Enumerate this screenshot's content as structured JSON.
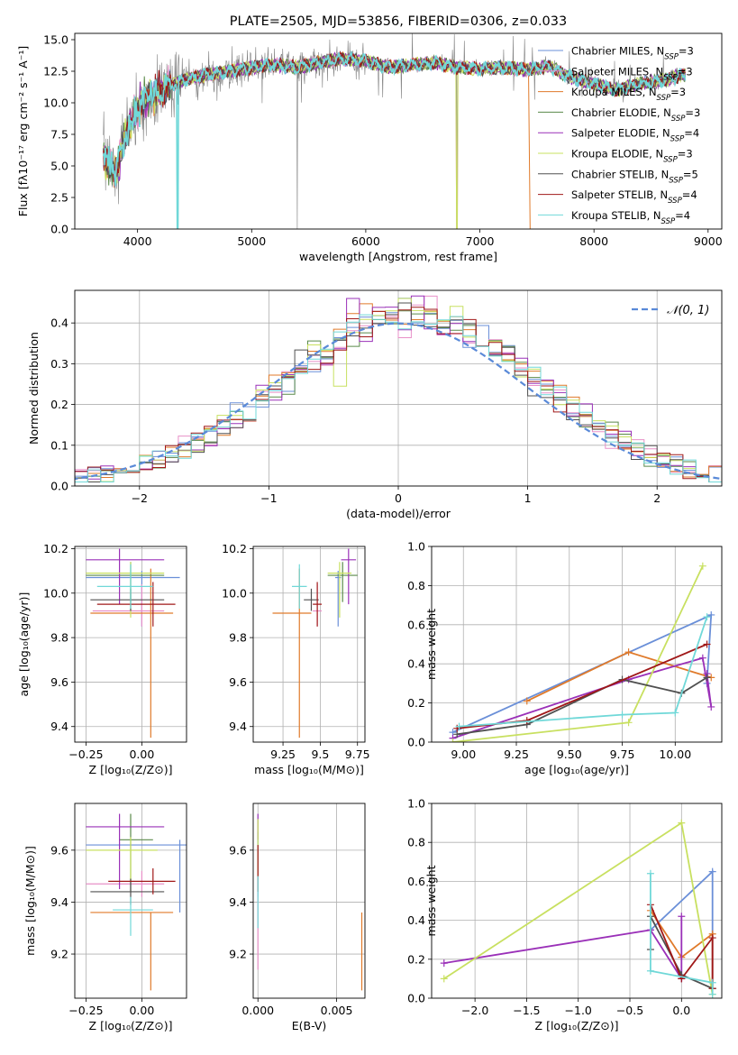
{
  "series_styles": [
    {
      "name": "Chabrier MILES",
      "color": "#6a8fd8"
    },
    {
      "name": "Salpeter MILES",
      "color": "#e890c8"
    },
    {
      "name": "Kroupa MILES",
      "color": "#e07a2a"
    },
    {
      "name": "Chabrier ELODIE",
      "color": "#5a8a4a"
    },
    {
      "name": "Salpeter ELODIE",
      "color": "#9a30b8"
    },
    {
      "name": "Kroupa ELODIE",
      "color": "#c8e060"
    },
    {
      "name": "Chabrier STELIB",
      "color": "#505050"
    },
    {
      "name": "Salpeter STELIB",
      "color": "#a01818"
    },
    {
      "name": "Kroupa STELIB",
      "color": "#70d8d8"
    }
  ],
  "chart_data": [
    {
      "id": "spectrum",
      "type": "line",
      "title": "PLATE=2505, MJD=53856, FIBERID=0306, z=0.033",
      "xlabel": "wavelength [Angstrom, rest frame]",
      "ylabel": "Flux [fλ10⁻¹⁷ erg cm⁻² s⁻¹ A⁻¹]",
      "xlim": [
        3450,
        9120
      ],
      "ylim": [
        0,
        15.5
      ],
      "xticks": [
        4000,
        5000,
        6000,
        7000,
        8000,
        9000
      ],
      "yticks": [
        0.0,
        2.5,
        5.0,
        7.5,
        10.0,
        12.5,
        15.0
      ],
      "grid": false,
      "legend": "upper-right",
      "legend_entries": [
        {
          "label": "Chabrier MILES, N",
          "sub": "SSP",
          "tail": "=3"
        },
        {
          "label": "Salpeter MILES, N",
          "sub": "SSP",
          "tail": "=3"
        },
        {
          "label": "Kroupa MILES, N",
          "sub": "SSP",
          "tail": "=3"
        },
        {
          "label": "Chabrier ELODIE, N",
          "sub": "SSP",
          "tail": "=3"
        },
        {
          "label": "Salpeter ELODIE, N",
          "sub": "SSP",
          "tail": "=4"
        },
        {
          "label": "Kroupa ELODIE, N",
          "sub": "SSP",
          "tail": "=3"
        },
        {
          "label": "Chabrier STELIB, N",
          "sub": "SSP",
          "tail": "=5"
        },
        {
          "label": "Salpeter STELIB, N",
          "sub": "SSP",
          "tail": "=4"
        },
        {
          "label": "Kroupa STELIB, N",
          "sub": "SSP",
          "tail": "=4"
        }
      ],
      "model_knots": {
        "x": [
          3700,
          3750,
          3800,
          3900,
          4000,
          4100,
          4200,
          4400,
          4600,
          4800,
          5000,
          5200,
          5400,
          5600,
          5800,
          6000,
          6200,
          6400,
          6600,
          6800,
          7000,
          7200,
          7400,
          7600,
          7800,
          8000,
          8200,
          8400,
          8600,
          8800
        ],
        "y": [
          6.0,
          5.0,
          4.5,
          7.5,
          9.5,
          10.5,
          11.0,
          11.8,
          12.2,
          12.5,
          12.8,
          13.0,
          12.8,
          13.2,
          13.5,
          13.3,
          12.8,
          13.0,
          13.2,
          12.8,
          12.7,
          12.8,
          12.6,
          12.9,
          12.0,
          11.5,
          11.0,
          11.5,
          11.8,
          12.2
        ]
      },
      "model_gaps": [
        {
          "series": "Kroupa MILES",
          "x": [
            7450,
            9120
          ],
          "drop_to": 0
        }
      ],
      "model_drops": [
        4350,
        6800
      ]
    },
    {
      "id": "residuals",
      "type": "histogram",
      "xlabel": "(data-model)/error",
      "ylabel": "Normed distribution",
      "xlim": [
        -2.5,
        2.5
      ],
      "ylim": [
        0,
        0.48
      ],
      "xticks": [
        -2,
        -1,
        0,
        1,
        2
      ],
      "yticks": [
        0.0,
        0.1,
        0.2,
        0.3,
        0.4
      ],
      "grid": true,
      "legend": "upper-right",
      "reference_label": "𝒩(0, 1)",
      "reference": {
        "mean": 0,
        "sigma": 1,
        "style": "dashed",
        "color": "#5a8ad8"
      },
      "bin_width": 0.1
    },
    {
      "id": "age-vs-Z",
      "type": "errorbar",
      "xlabel": "Z [log₁₀(Z/Z⊙)]",
      "ylabel": "age  [log₁₀(age/yr)]",
      "xlim": [
        -0.3,
        0.2
      ],
      "ylim": [
        9.33,
        10.21
      ],
      "xticks": [
        -0.25,
        0.0
      ],
      "xtick_labels": [
        "−0.25",
        "0.00"
      ],
      "yticks": [
        9.4,
        9.6,
        9.8,
        10.0,
        10.2
      ],
      "grid": true,
      "points": [
        {
          "series": "Chabrier MILES",
          "x": 0.0,
          "xerr": [
            0.25,
            0.17
          ],
          "y": 10.07,
          "yerr": [
            0.22,
            0.03
          ]
        },
        {
          "series": "Salpeter MILES",
          "x": 0.0,
          "xerr": [
            0.22,
            0.1
          ],
          "y": 9.92,
          "yerr": [
            0.07,
            0.12
          ]
        },
        {
          "series": "Kroupa MILES",
          "x": 0.04,
          "xerr": [
            0.27,
            0.1
          ],
          "y": 9.91,
          "yerr": [
            0.56,
            0.2
          ]
        },
        {
          "series": "Chabrier ELODIE",
          "x": -0.05,
          "xerr": [
            0.2,
            0.15
          ],
          "y": 10.08,
          "yerr": [
            0.12,
            0.06
          ]
        },
        {
          "series": "Salpeter ELODIE",
          "x": -0.1,
          "xerr": [
            0.15,
            0.2
          ],
          "y": 10.15,
          "yerr": [
            0.2,
            0.05
          ]
        },
        {
          "series": "Kroupa ELODIE",
          "x": -0.05,
          "xerr": [
            0.2,
            0.15
          ],
          "y": 10.09,
          "yerr": [
            0.2,
            0.05
          ]
        },
        {
          "series": "Chabrier STELIB",
          "x": -0.05,
          "xerr": [
            0.18,
            0.15
          ],
          "y": 9.97,
          "yerr": [
            0.05,
            0.05
          ]
        },
        {
          "series": "Salpeter STELIB",
          "x": 0.05,
          "xerr": [
            0.25,
            0.1
          ],
          "y": 9.95,
          "yerr": [
            0.1,
            0.1
          ]
        },
        {
          "series": "Kroupa STELIB",
          "x": -0.05,
          "xerr": [
            0.15,
            0.1
          ],
          "y": 10.03,
          "yerr": [
            0.1,
            0.1
          ]
        }
      ]
    },
    {
      "id": "age-vs-mass",
      "type": "errorbar",
      "xlabel": "mass [log₁₀(M/M⊙)]",
      "ylabel": "",
      "xlim": [
        9.05,
        9.8
      ],
      "ylim": [
        9.33,
        10.21
      ],
      "xticks": [
        9.25,
        9.5,
        9.75
      ],
      "yticks": [
        9.4,
        9.6,
        9.8,
        10.0,
        10.2
      ],
      "grid": true,
      "points": [
        {
          "series": "Chabrier MILES",
          "x": 9.62,
          "xerr": [
            0.02,
            0.02
          ],
          "y": 10.07,
          "yerr": [
            0.22,
            0.03
          ]
        },
        {
          "series": "Salpeter MILES",
          "x": 9.48,
          "xerr": [
            0.03,
            0.03
          ],
          "y": 9.92,
          "yerr": [
            0.07,
            0.12
          ]
        },
        {
          "series": "Kroupa MILES",
          "x": 9.36,
          "xerr": [
            0.18,
            0.08
          ],
          "y": 9.91,
          "yerr": [
            0.56,
            0.2
          ]
        },
        {
          "series": "Chabrier ELODIE",
          "x": 9.65,
          "xerr": [
            0.1,
            0.1
          ],
          "y": 10.08,
          "yerr": [
            0.12,
            0.06
          ]
        },
        {
          "series": "Salpeter ELODIE",
          "x": 9.69,
          "xerr": [
            0.05,
            0.05
          ],
          "y": 10.15,
          "yerr": [
            0.2,
            0.05
          ]
        },
        {
          "series": "Kroupa ELODIE",
          "x": 9.63,
          "xerr": [
            0.08,
            0.08
          ],
          "y": 10.09,
          "yerr": [
            0.2,
            0.05
          ]
        },
        {
          "series": "Chabrier STELIB",
          "x": 9.44,
          "xerr": [
            0.05,
            0.05
          ],
          "y": 9.97,
          "yerr": [
            0.05,
            0.05
          ]
        },
        {
          "series": "Salpeter STELIB",
          "x": 9.48,
          "xerr": [
            0.03,
            0.03
          ],
          "y": 9.95,
          "yerr": [
            0.1,
            0.1
          ]
        },
        {
          "series": "Kroupa STELIB",
          "x": 9.36,
          "xerr": [
            0.05,
            0.05
          ],
          "y": 10.03,
          "yerr": [
            0.1,
            0.1
          ]
        }
      ]
    },
    {
      "id": "weight-vs-age",
      "type": "line",
      "xlabel": "age  [log₁₀(age/yr)]",
      "ylabel": "mass weight",
      "xlim": [
        8.85,
        10.22
      ],
      "ylim": [
        0,
        1.0
      ],
      "xticks": [
        9.0,
        9.25,
        9.5,
        9.75,
        10.0
      ],
      "yticks": [
        0.0,
        0.2,
        0.4,
        0.6,
        0.8,
        1.0
      ],
      "grid": true,
      "series": [
        {
          "name": "Chabrier MILES",
          "x": [
            8.95,
            10.17,
            10.15
          ],
          "y": [
            0.05,
            0.65,
            0.3
          ]
        },
        {
          "name": "Kroupa MILES",
          "x": [
            9.3,
            9.78,
            10.17
          ],
          "y": [
            0.21,
            0.46,
            0.33
          ]
        },
        {
          "name": "Salpeter ELODIE",
          "x": [
            8.95,
            9.78,
            10.13,
            10.17,
            10.15
          ],
          "y": [
            0.02,
            0.32,
            0.43,
            0.18,
            0.35
          ]
        },
        {
          "name": "Kroupa ELODIE",
          "x": [
            8.95,
            9.78,
            10.13
          ],
          "y": [
            0.0,
            0.1,
            0.9
          ]
        },
        {
          "name": "Chabrier STELIB",
          "x": [
            8.97,
            9.3,
            9.75,
            10.03,
            10.15
          ],
          "y": [
            0.04,
            0.09,
            0.32,
            0.25,
            0.33
          ]
        },
        {
          "name": "Salpeter STELIB",
          "x": [
            8.97,
            9.3,
            10.15
          ],
          "y": [
            0.07,
            0.11,
            0.5
          ]
        },
        {
          "name": "Kroupa STELIB",
          "x": [
            8.98,
            9.75,
            10.0,
            10.15
          ],
          "y": [
            0.08,
            0.14,
            0.15,
            0.64
          ]
        }
      ]
    },
    {
      "id": "mass-vs-Z",
      "type": "errorbar",
      "xlabel": "Z [log₁₀(Z/Z⊙)]",
      "ylabel": "mass [log₁₀(M/M⊙)]",
      "xlim": [
        -0.3,
        0.2
      ],
      "ylim": [
        9.03,
        9.78
      ],
      "xticks": [
        -0.25,
        0.0
      ],
      "xtick_labels": [
        "−0.25",
        "0.00"
      ],
      "yticks": [
        9.2,
        9.4,
        9.6
      ],
      "grid": true,
      "points": [
        {
          "series": "Chabrier MILES",
          "x": 0.17,
          "xerr": [
            0.42,
            0.05
          ],
          "y": 9.62,
          "yerr": [
            0.26,
            0.02
          ]
        },
        {
          "series": "Salpeter MILES",
          "x": 0.0,
          "xerr": [
            0.25,
            0.1
          ],
          "y": 9.47,
          "yerr": [
            0.05,
            0.05
          ]
        },
        {
          "series": "Kroupa MILES",
          "x": 0.04,
          "xerr": [
            0.27,
            0.1
          ],
          "y": 9.36,
          "yerr": [
            0.3,
            0.0
          ]
        },
        {
          "series": "Chabrier ELODIE",
          "x": -0.05,
          "xerr": [
            0.05,
            0.1
          ],
          "y": 9.64,
          "yerr": [
            0.2,
            0.1
          ]
        },
        {
          "series": "Salpeter ELODIE",
          "x": -0.1,
          "xerr": [
            0.15,
            0.2
          ],
          "y": 9.69,
          "yerr": [
            0.24,
            0.05
          ]
        },
        {
          "series": "Kroupa ELODIE",
          "x": -0.05,
          "xerr": [
            0.2,
            0.12
          ],
          "y": 9.6,
          "yerr": [
            0.12,
            0.05
          ]
        },
        {
          "series": "Chabrier STELIB",
          "x": -0.05,
          "xerr": [
            0.18,
            0.15
          ],
          "y": 9.44,
          "yerr": [
            0.05,
            0.05
          ]
        },
        {
          "series": "Salpeter STELIB",
          "x": 0.05,
          "xerr": [
            0.2,
            0.1
          ],
          "y": 9.48,
          "yerr": [
            0.05,
            0.05
          ]
        },
        {
          "series": "Kroupa STELIB",
          "x": -0.05,
          "xerr": [
            0.08,
            0.1
          ],
          "y": 9.37,
          "yerr": [
            0.1,
            0.05
          ]
        }
      ]
    },
    {
      "id": "mass-vs-EBV",
      "type": "errorbar",
      "xlabel": "E(B-V)",
      "ylabel": "",
      "xlim": [
        -0.0003,
        0.0068
      ],
      "ylim": [
        9.03,
        9.78
      ],
      "xticks": [
        0.0,
        0.005
      ],
      "xtick_labels": [
        "0.000",
        "0.005"
      ],
      "yticks": [
        9.2,
        9.4,
        9.6
      ],
      "grid": true,
      "points": [
        {
          "series": "Chabrier MILES",
          "x": 0.0,
          "xerr": [
            0,
            0
          ],
          "y": 9.62,
          "yerr": [
            0.2,
            0.05
          ]
        },
        {
          "series": "Salpeter MILES",
          "x": 0.0,
          "xerr": [
            0,
            0
          ],
          "y": 9.47,
          "yerr": [
            0.33,
            0.05
          ]
        },
        {
          "series": "Kroupa MILES",
          "x": 0.0066,
          "xerr": [
            0,
            0
          ],
          "y": 9.21,
          "yerr": [
            0.15,
            0.15
          ]
        },
        {
          "series": "Salpeter ELODIE",
          "x": 0.0,
          "xerr": [
            0,
            0
          ],
          "y": 9.69,
          "yerr": [
            0.05,
            0.05
          ]
        },
        {
          "series": "Kroupa ELODIE",
          "x": 0.0,
          "xerr": [
            0,
            0
          ],
          "y": 9.6,
          "yerr": [
            0.1,
            0.12
          ]
        },
        {
          "series": "Salpeter STELIB",
          "x": 0.0,
          "xerr": [
            0,
            0
          ],
          "y": 9.52,
          "yerr": [
            0.08,
            0.1
          ]
        },
        {
          "series": "Kroupa STELIB",
          "x": 0.0,
          "xerr": [
            0,
            0
          ],
          "y": 9.4,
          "yerr": [
            0.1,
            0.1
          ]
        }
      ]
    },
    {
      "id": "weight-vs-Z",
      "type": "line",
      "xlabel": "Z [log₁₀(Z/Z⊙)]",
      "ylabel": "mass weight",
      "xlim": [
        -2.42,
        0.39
      ],
      "ylim": [
        0,
        1.0
      ],
      "xticks": [
        -2.0,
        -1.5,
        -1.0,
        -0.5,
        0.0
      ],
      "xtick_labels": [
        "−2.0",
        "−1.5",
        "−1.0",
        "−0.5",
        "0.0"
      ],
      "yticks": [
        0.0,
        0.2,
        0.4,
        0.6,
        0.8,
        1.0
      ],
      "grid": true,
      "series": [
        {
          "name": "Chabrier MILES",
          "x": [
            -0.3,
            0.3,
            0.3
          ],
          "y": [
            0.35,
            0.65,
            0.05
          ]
        },
        {
          "name": "Kroupa MILES",
          "x": [
            -0.3,
            0.0,
            0.3,
            0.3
          ],
          "y": [
            0.45,
            0.21,
            0.33,
            0.05
          ]
        },
        {
          "name": "Salpeter ELODIE",
          "x": [
            -2.3,
            -0.3,
            0.0,
            0.0
          ],
          "y": [
            0.18,
            0.35,
            0.1,
            0.42
          ]
        },
        {
          "name": "Kroupa ELODIE",
          "x": [
            -2.3,
            0.0,
            0.3
          ],
          "y": [
            0.1,
            0.9,
            0.02
          ]
        },
        {
          "name": "Chabrier STELIB",
          "x": [
            -0.3,
            -0.3,
            0.0,
            0.3
          ],
          "y": [
            0.25,
            0.42,
            0.12,
            0.05
          ]
        },
        {
          "name": "Salpeter STELIB",
          "x": [
            -0.3,
            0.0,
            0.3,
            0.3
          ],
          "y": [
            0.48,
            0.1,
            0.31,
            0.05
          ]
        },
        {
          "name": "Kroupa STELIB",
          "x": [
            -0.3,
            -0.3,
            0.3,
            0.3
          ],
          "y": [
            0.64,
            0.14,
            0.08,
            0.02
          ]
        }
      ]
    }
  ]
}
